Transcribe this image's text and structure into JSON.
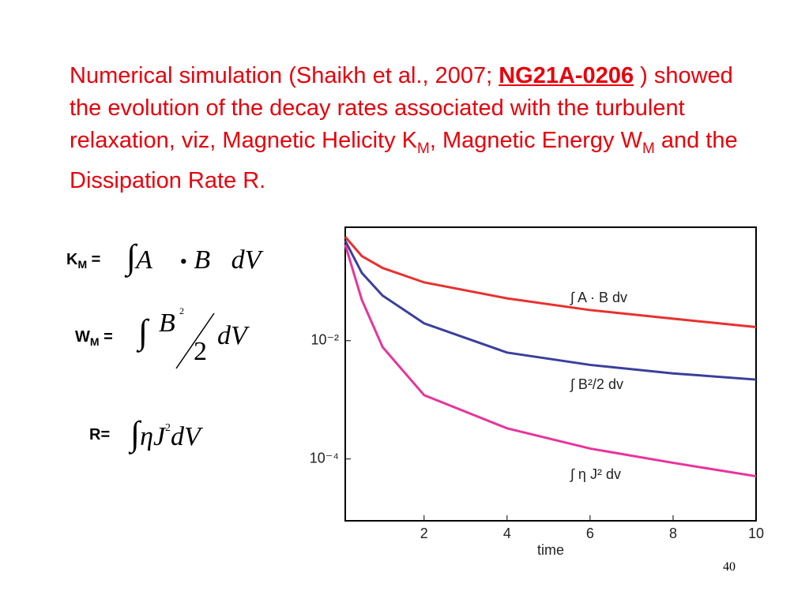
{
  "paragraph": {
    "before_link": "Numerical simulation (Shaikh et al., 2007; ",
    "link": "NG21A-0206",
    "after_link": " ) showed the evolution of the decay rates associated with the turbulent relaxation, viz, Magnetic Helicity K",
    "sub1": "M",
    "mid": ", Magnetic Energy W",
    "sub2": "M",
    "end": " and the Dissipation Rate R."
  },
  "equations": [
    {
      "name": "K",
      "sub": "M",
      "eq": " =",
      "parts": [
        "∫",
        "A⃗",
        "•",
        "B⃗",
        "dV"
      ]
    },
    {
      "name": "W",
      "sub": "M",
      "eq": " =",
      "parts": [
        "∫",
        "B",
        "2",
        "2",
        "dV"
      ]
    },
    {
      "name": "R",
      "eq": "=",
      "parts": [
        "∫",
        "η",
        "J",
        "2",
        "dV"
      ]
    }
  ],
  "page_number": "40",
  "chart_data": {
    "type": "line",
    "xlabel": "time",
    "log_y": true,
    "x": [
      0.1,
      0.5,
      1,
      2,
      4,
      6,
      8,
      10
    ],
    "series": [
      {
        "name": "∫ A · B dv",
        "color": "#e8312f",
        "values": [
          0.57,
          0.27,
          0.17,
          0.097,
          0.052,
          0.033,
          0.0236,
          0.017
        ]
      },
      {
        "name": "∫  B²/2 dv",
        "color": "#3b3f9b",
        "values": [
          0.49,
          0.14,
          0.058,
          0.0197,
          0.0063,
          0.0039,
          0.0028,
          0.0022
        ]
      },
      {
        "name": "∫ η J² dv",
        "color": "#e8349c",
        "values": [
          0.42,
          0.049,
          0.0078,
          0.0012,
          0.00033,
          0.00015,
          8.6e-05,
          5.1e-05
        ]
      }
    ],
    "xlim": [
      0.1,
      10
    ],
    "ylim": [
      9e-06,
      0.83
    ],
    "xticks": [
      2,
      4,
      6,
      8,
      10
    ],
    "yticks": [
      {
        "value": 0.0001,
        "label": "10⁻⁴"
      },
      {
        "value": 0.01,
        "label": "10⁻²"
      }
    ]
  }
}
